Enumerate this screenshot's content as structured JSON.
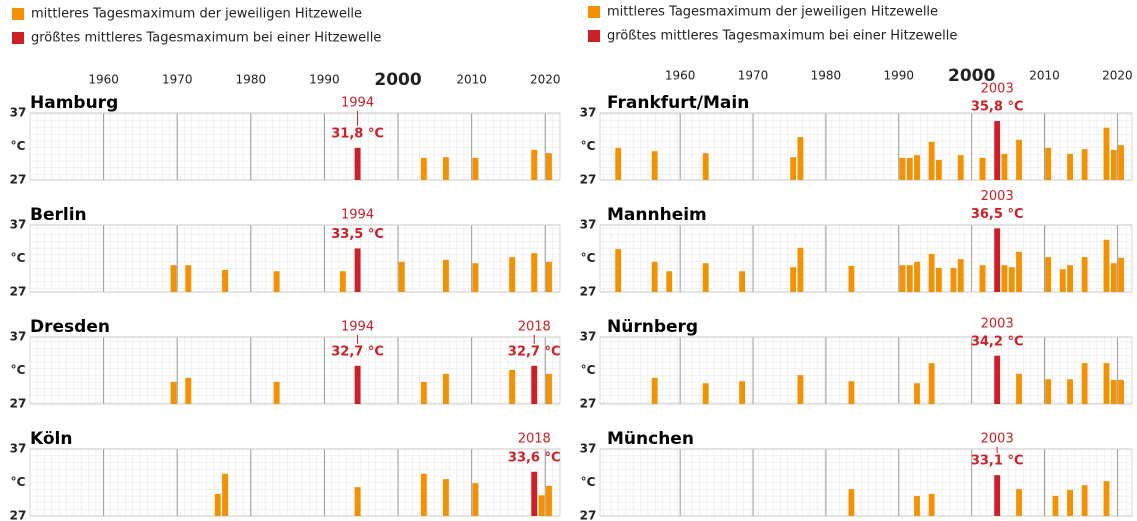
{
  "legend": [
    {
      "label": "mittleres Tagesmaximum der jeweiligen Hitzewelle",
      "color": "#f39200"
    },
    {
      "label": "größtes mittleres Tagesmaximum bei einer Hitzewelle",
      "color": "#cc1f26"
    }
  ],
  "chart_data": [
    {
      "type": "bar",
      "title": "Hamburg",
      "x": [
        1994,
        2003,
        2006,
        2010,
        2018,
        2020
      ],
      "values": [
        31.8,
        30.3,
        30.4,
        30.3,
        31.5,
        31.0
      ],
      "colors": [
        "#cc1f26",
        "#f39200",
        "#f39200",
        "#f39200",
        "#f39200",
        "#f39200"
      ],
      "value_labels": [
        "31,8 °C",
        null,
        null,
        null,
        null,
        null
      ],
      "xlim": [
        1950,
        2022
      ],
      "xticks": [
        1960,
        1970,
        1980,
        1990,
        2000,
        2010,
        2020
      ],
      "ylim": [
        27,
        37
      ],
      "yticks": [
        27,
        37
      ],
      "ylabel": "°C"
    },
    {
      "type": "bar",
      "title": "Berlin",
      "x": [
        1969,
        1971,
        1976,
        1983,
        1992,
        1994,
        2000,
        2006,
        2010,
        2015,
        2018,
        2020
      ],
      "values": [
        31.0,
        31.0,
        30.3,
        30.1,
        30.1,
        33.5,
        31.5,
        31.8,
        31.3,
        32.2,
        32.8,
        31.5
      ],
      "colors": [
        "#f39200",
        "#f39200",
        "#f39200",
        "#f39200",
        "#f39200",
        "#cc1f26",
        "#f39200",
        "#f39200",
        "#f39200",
        "#f39200",
        "#f39200",
        "#f39200"
      ],
      "value_labels": [
        null,
        null,
        null,
        null,
        null,
        "33,5 °C",
        null,
        null,
        null,
        null,
        null,
        null
      ],
      "xlim": [
        1950,
        2022
      ],
      "xticks": [
        1960,
        1970,
        1980,
        1990,
        2000,
        2010,
        2020
      ],
      "ylim": [
        27,
        37
      ],
      "yticks": [
        27,
        37
      ],
      "ylabel": "°C"
    },
    {
      "type": "bar",
      "title": "Dresden",
      "x": [
        1969,
        1971,
        1983,
        1994,
        2003,
        2006,
        2015,
        2018,
        2020
      ],
      "values": [
        30.3,
        30.9,
        30.3,
        32.7,
        30.3,
        31.5,
        32.1,
        32.7,
        31.5
      ],
      "colors": [
        "#f39200",
        "#f39200",
        "#f39200",
        "#cc1f26",
        "#f39200",
        "#f39200",
        "#f39200",
        "#cc1f26",
        "#f39200"
      ],
      "value_labels": [
        null,
        null,
        null,
        "32,7 °C",
        null,
        null,
        null,
        "32,7 °C",
        null
      ],
      "xlim": [
        1950,
        2022
      ],
      "xticks": [
        1960,
        1970,
        1980,
        1990,
        2000,
        2010,
        2020
      ],
      "ylim": [
        27,
        37
      ],
      "yticks": [
        27,
        37
      ],
      "ylabel": "°C"
    },
    {
      "type": "bar",
      "title": "Köln",
      "x": [
        1975,
        1976,
        1994,
        2003,
        2006,
        2010,
        2018,
        2019,
        2020
      ],
      "values": [
        30.3,
        33.3,
        31.3,
        33.3,
        32.5,
        31.9,
        33.6,
        30.1,
        31.5
      ],
      "colors": [
        "#f39200",
        "#f39200",
        "#f39200",
        "#f39200",
        "#f39200",
        "#f39200",
        "#cc1f26",
        "#f39200",
        "#f39200"
      ],
      "value_labels": [
        null,
        null,
        null,
        null,
        null,
        null,
        "33,6 °C",
        null,
        null
      ],
      "xlim": [
        1950,
        2022
      ],
      "xticks": [
        1960,
        1970,
        1980,
        1990,
        2000,
        2010,
        2020
      ],
      "ylim": [
        27,
        37
      ],
      "yticks": [
        27,
        37
      ],
      "ylabel": "°C"
    },
    {
      "type": "bar",
      "title": "Frankfurt/Main",
      "x": [
        1951,
        1956,
        1963,
        1975,
        1976,
        1990,
        1991,
        1992,
        1994,
        1995,
        1998,
        2001,
        2003,
        2004,
        2006,
        2010,
        2013,
        2015,
        2018,
        2019,
        2020
      ],
      "values": [
        31.8,
        31.3,
        31.0,
        30.4,
        33.4,
        30.3,
        30.3,
        30.7,
        32.7,
        30.0,
        30.7,
        30.3,
        35.8,
        30.9,
        33.0,
        31.8,
        30.9,
        31.6,
        34.8,
        31.5,
        32.2
      ],
      "colors": [
        "#f39200",
        "#f39200",
        "#f39200",
        "#f39200",
        "#f39200",
        "#f39200",
        "#f39200",
        "#f39200",
        "#f39200",
        "#f39200",
        "#f39200",
        "#f39200",
        "#cc1f26",
        "#f39200",
        "#f39200",
        "#f39200",
        "#f39200",
        "#f39200",
        "#f39200",
        "#f39200",
        "#f39200"
      ],
      "value_labels": [
        null,
        null,
        null,
        null,
        null,
        null,
        null,
        null,
        null,
        null,
        null,
        null,
        "35,8 °C",
        null,
        null,
        null,
        null,
        null,
        null,
        null,
        null
      ],
      "xlim": [
        1949,
        2022
      ],
      "xticks": [
        1960,
        1970,
        1980,
        1990,
        2000,
        2010,
        2020
      ],
      "ylim": [
        27,
        37
      ],
      "yticks": [
        27,
        37
      ],
      "ylabel": "°C"
    },
    {
      "type": "bar",
      "title": "Mannheim",
      "x": [
        1951,
        1956,
        1958,
        1963,
        1968,
        1975,
        1976,
        1983,
        1990,
        1991,
        1992,
        1994,
        1995,
        1997,
        1998,
        2001,
        2003,
        2004,
        2005,
        2006,
        2010,
        2012,
        2013,
        2015,
        2018,
        2019,
        2020
      ],
      "values": [
        33.4,
        31.5,
        30.1,
        31.3,
        30.1,
        30.7,
        33.6,
        30.9,
        31.0,
        31.0,
        31.5,
        32.7,
        30.6,
        30.6,
        31.9,
        31.0,
        36.5,
        31.0,
        30.7,
        33.0,
        32.2,
        30.4,
        31.0,
        32.2,
        34.8,
        31.3,
        32.1
      ],
      "colors": [
        "#f39200",
        "#f39200",
        "#f39200",
        "#f39200",
        "#f39200",
        "#f39200",
        "#f39200",
        "#f39200",
        "#f39200",
        "#f39200",
        "#f39200",
        "#f39200",
        "#f39200",
        "#f39200",
        "#f39200",
        "#f39200",
        "#cc1f26",
        "#f39200",
        "#f39200",
        "#f39200",
        "#f39200",
        "#f39200",
        "#f39200",
        "#f39200",
        "#f39200",
        "#f39200",
        "#f39200"
      ],
      "value_labels": [
        null,
        null,
        null,
        null,
        null,
        null,
        null,
        null,
        null,
        null,
        null,
        null,
        null,
        null,
        null,
        null,
        "36,5 °C",
        null,
        null,
        null,
        null,
        null,
        null,
        null,
        null,
        null,
        null
      ],
      "xlim": [
        1949,
        2022
      ],
      "xticks": [
        1960,
        1970,
        1980,
        1990,
        2000,
        2010,
        2020
      ],
      "ylim": [
        27,
        37
      ],
      "yticks": [
        27,
        37
      ],
      "ylabel": "°C"
    },
    {
      "type": "bar",
      "title": "Nürnberg",
      "x": [
        1956,
        1963,
        1968,
        1976,
        1983,
        1992,
        1994,
        2003,
        2006,
        2010,
        2013,
        2015,
        2018,
        2019,
        2020
      ],
      "values": [
        30.9,
        30.1,
        30.4,
        31.3,
        30.4,
        30.1,
        33.1,
        34.2,
        31.5,
        30.7,
        30.7,
        33.1,
        33.1,
        30.6,
        30.6
      ],
      "colors": [
        "#f39200",
        "#f39200",
        "#f39200",
        "#f39200",
        "#f39200",
        "#f39200",
        "#f39200",
        "#cc1f26",
        "#f39200",
        "#f39200",
        "#f39200",
        "#f39200",
        "#f39200",
        "#f39200",
        "#f39200"
      ],
      "value_labels": [
        null,
        null,
        null,
        null,
        null,
        null,
        null,
        "34,2 °C",
        null,
        null,
        null,
        null,
        null,
        null,
        null
      ],
      "xlim": [
        1949,
        2022
      ],
      "xticks": [
        1960,
        1970,
        1980,
        1990,
        2000,
        2010,
        2020
      ],
      "ylim": [
        27,
        37
      ],
      "yticks": [
        27,
        37
      ],
      "ylabel": "°C"
    },
    {
      "type": "bar",
      "title": "München",
      "x": [
        1983,
        1992,
        1994,
        2003,
        2006,
        2011,
        2013,
        2015,
        2018
      ],
      "values": [
        31.0,
        30.0,
        30.3,
        33.1,
        31.0,
        30.0,
        30.9,
        31.6,
        32.2
      ],
      "colors": [
        "#f39200",
        "#f39200",
        "#f39200",
        "#cc1f26",
        "#f39200",
        "#f39200",
        "#f39200",
        "#f39200",
        "#f39200"
      ],
      "value_labels": [
        null,
        null,
        null,
        "33,1 °C",
        null,
        null,
        null,
        null,
        null
      ],
      "xlim": [
        1949,
        2022
      ],
      "xticks": [
        1960,
        1970,
        1980,
        1990,
        2000,
        2010,
        2020
      ],
      "ylim": [
        27,
        37
      ],
      "yticks": [
        27,
        37
      ],
      "ylabel": "°C"
    }
  ]
}
